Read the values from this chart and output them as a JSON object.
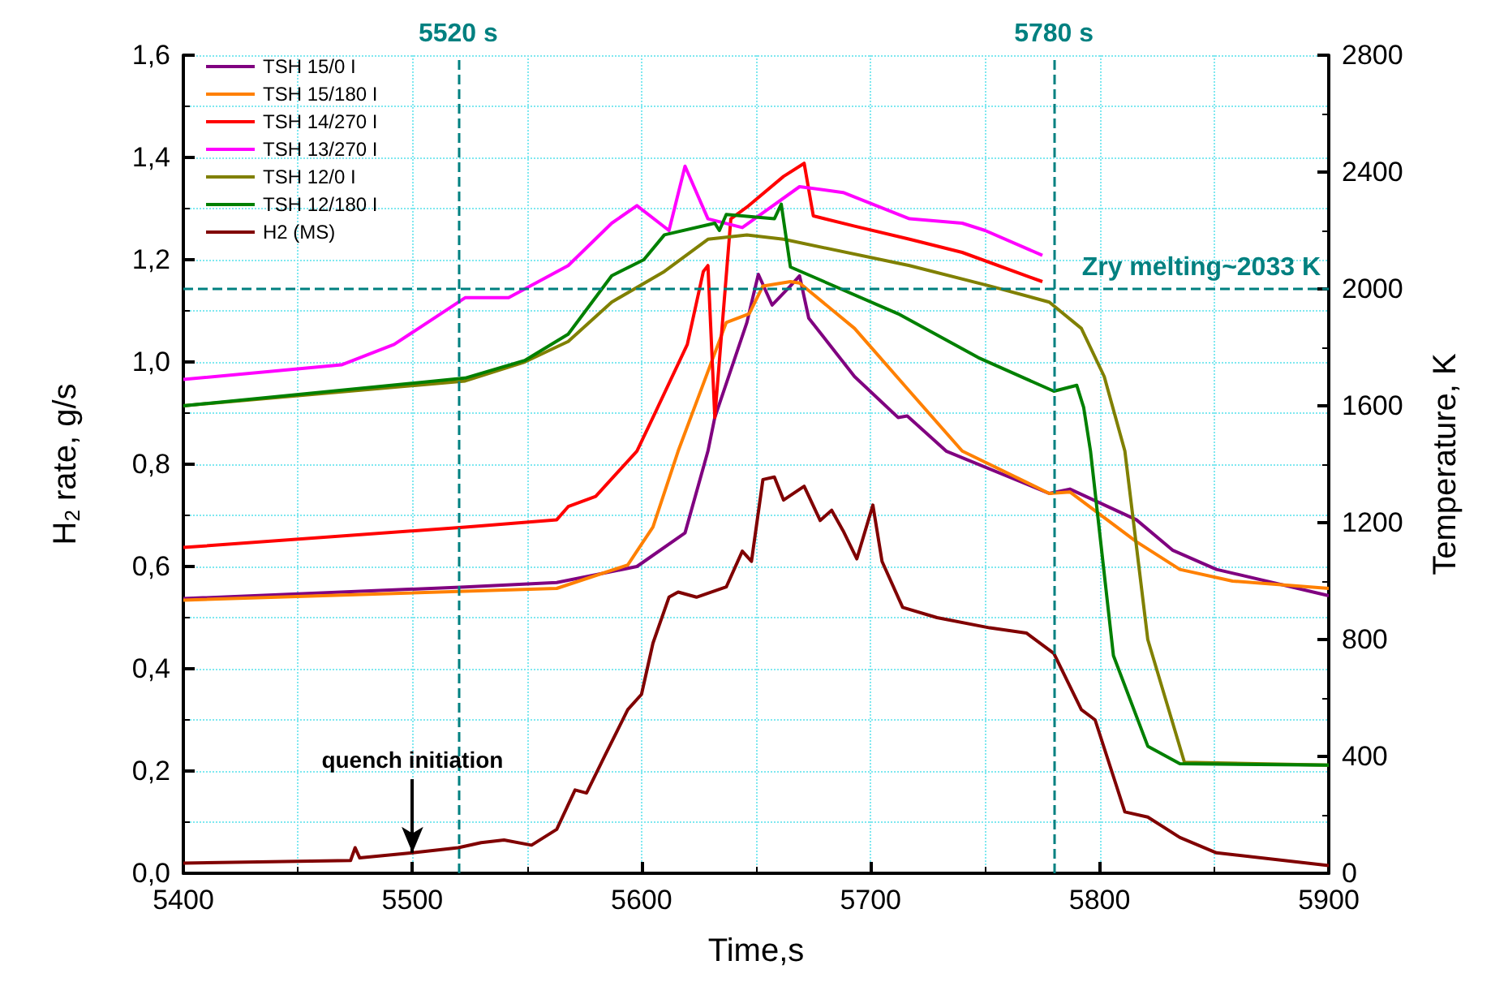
{
  "chart_data": {
    "type": "line",
    "xlabel": "Time,s",
    "ylabel": "H$_{2}$ rate, g/s",
    "y2label": "Temperature, K",
    "xlim": [
      5400,
      5900
    ],
    "xticks": [
      5400,
      5500,
      5600,
      5700,
      5800,
      5900
    ],
    "ylim": [
      0,
      1.6
    ],
    "yticks": [
      {
        "value": 0,
        "label": "0,0"
      },
      {
        "value": 0.2,
        "label": "0,2"
      },
      {
        "value": 0.4,
        "label": "0,4"
      },
      {
        "value": 0.6,
        "label": "0,6"
      },
      {
        "value": 0.8,
        "label": "0,8"
      },
      {
        "value": 1.0,
        "label": "1,0"
      },
      {
        "value": 1.2,
        "label": "1,2"
      },
      {
        "value": 1.4,
        "label": "1,4"
      },
      {
        "value": 1.6,
        "label": "1,6"
      }
    ],
    "y2lim": [
      0,
      2800
    ],
    "y2ticks": [
      0,
      400,
      800,
      1200,
      1600,
      2000,
      2400,
      2800
    ],
    "grid": true,
    "legend": "top left",
    "line_style": "solid",
    "marker": "none",
    "annotations": [
      {
        "text": "quench initiation",
        "x": 5500,
        "y": 0.04
      }
    ],
    "ref_lines": [
      {
        "axis": "x",
        "value": 5520,
        "label": "5520 s",
        "color": "#008080",
        "line_style": "dashed"
      },
      {
        "axis": "x",
        "value": 5780,
        "label": "5780 s",
        "color": "#008080",
        "line_style": "dashed"
      },
      {
        "axis": "y2",
        "value": 2000,
        "label": "Zry melting~2033 K",
        "color": "#008080",
        "line_style": "dashed"
      }
    ],
    "series": [
      {
        "name": "TSH 15/0 I",
        "color": "#800080",
        "axis": "y2",
        "x": [
          5400,
          5523,
          5563,
          5598,
          5619,
          5629,
          5632,
          5646,
          5651,
          5657,
          5665,
          5669,
          5673,
          5693,
          5712,
          5716,
          5733,
          5778,
          5787,
          5816,
          5832,
          5851,
          5900
        ],
        "values": [
          940,
          980,
          995,
          1050,
          1165,
          1445,
          1560,
          1885,
          2050,
          1945,
          2010,
          2045,
          1900,
          1700,
          1560,
          1565,
          1445,
          1300,
          1315,
          1210,
          1105,
          1040,
          950
        ]
      },
      {
        "name": "TSH 15/180 I",
        "color": "#ff8000",
        "axis": "y2",
        "x": [
          5400,
          5563,
          5594,
          5605,
          5616,
          5637,
          5647,
          5653,
          5665,
          5669,
          5693,
          5717,
          5740,
          5778,
          5787,
          5816,
          5835,
          5858,
          5900
        ],
        "values": [
          935,
          975,
          1055,
          1185,
          1445,
          1885,
          1915,
          2010,
          2025,
          2020,
          1865,
          1650,
          1445,
          1300,
          1305,
          1135,
          1040,
          1000,
          975
        ]
      },
      {
        "name": "TSH 14/270 I",
        "color": "#ff0000",
        "axis": "y2",
        "x": [
          5400,
          5523,
          5563,
          5568,
          5580,
          5598,
          5605,
          5620,
          5627,
          5629,
          5632,
          5639,
          5646,
          5662,
          5671,
          5675,
          5693,
          5717,
          5740,
          5775
        ],
        "values": [
          1115,
          1185,
          1210,
          1255,
          1290,
          1445,
          1560,
          1810,
          2060,
          2080,
          1560,
          2240,
          2280,
          2385,
          2430,
          2250,
          2215,
          2170,
          2125,
          2025
        ]
      },
      {
        "name": "TSH 13/270 I",
        "color": "#ff00ff",
        "axis": "y2",
        "x": [
          5400,
          5469,
          5492,
          5523,
          5542,
          5568,
          5587,
          5598,
          5612,
          5619,
          5629,
          5644,
          5669,
          5688,
          5717,
          5740,
          5750,
          5775
        ],
        "values": [
          1690,
          1740,
          1810,
          1970,
          1970,
          2080,
          2225,
          2285,
          2200,
          2420,
          2240,
          2210,
          2350,
          2330,
          2240,
          2225,
          2200,
          2115
        ]
      },
      {
        "name": "TSH 12/0 I",
        "color": "#808000",
        "axis": "y2",
        "x": [
          5400,
          5523,
          5549,
          5568,
          5587,
          5610,
          5629,
          5646,
          5662,
          5717,
          5752,
          5778,
          5792,
          5802,
          5811,
          5821,
          5837,
          5900
        ],
        "values": [
          1600,
          1685,
          1750,
          1820,
          1955,
          2060,
          2170,
          2185,
          2170,
          2080,
          2010,
          1955,
          1865,
          1700,
          1445,
          800,
          380,
          370
        ]
      },
      {
        "name": "TSH 12/180 I",
        "color": "#008000",
        "axis": "y2",
        "x": [
          5400,
          5523,
          5549,
          5568,
          5587,
          5601,
          5610,
          5632,
          5634,
          5637,
          5658,
          5661,
          5665,
          5712,
          5747,
          5780,
          5790,
          5793,
          5796,
          5806,
          5821,
          5835,
          5900
        ],
        "values": [
          1600,
          1695,
          1755,
          1845,
          2045,
          2100,
          2185,
          2225,
          2200,
          2255,
          2240,
          2290,
          2075,
          1915,
          1765,
          1650,
          1670,
          1595,
          1445,
          745,
          435,
          375,
          370
        ]
      },
      {
        "name": "H2 (MS)",
        "color": "#800000",
        "axis": "y",
        "x": [
          5400,
          5473,
          5475,
          5477,
          5500,
          5520,
          5530,
          5540,
          5552,
          5563,
          5571,
          5576,
          5584,
          5594,
          5600,
          5605,
          5612,
          5616,
          5624,
          5637,
          5644,
          5648,
          5653,
          5658,
          5662,
          5671,
          5678,
          5683,
          5688,
          5694,
          5701,
          5705,
          5714,
          5729,
          5752,
          5768,
          5780,
          5792,
          5798,
          5811,
          5821,
          5835,
          5851,
          5900
        ],
        "values": [
          0.02,
          0.025,
          0.05,
          0.03,
          0.04,
          0.05,
          0.06,
          0.065,
          0.055,
          0.086,
          0.163,
          0.157,
          0.23,
          0.32,
          0.35,
          0.45,
          0.54,
          0.55,
          0.54,
          0.56,
          0.63,
          0.61,
          0.77,
          0.775,
          0.73,
          0.757,
          0.69,
          0.71,
          0.67,
          0.615,
          0.72,
          0.61,
          0.52,
          0.5,
          0.48,
          0.47,
          0.43,
          0.32,
          0.3,
          0.12,
          0.11,
          0.07,
          0.04,
          0.015
        ]
      }
    ]
  }
}
